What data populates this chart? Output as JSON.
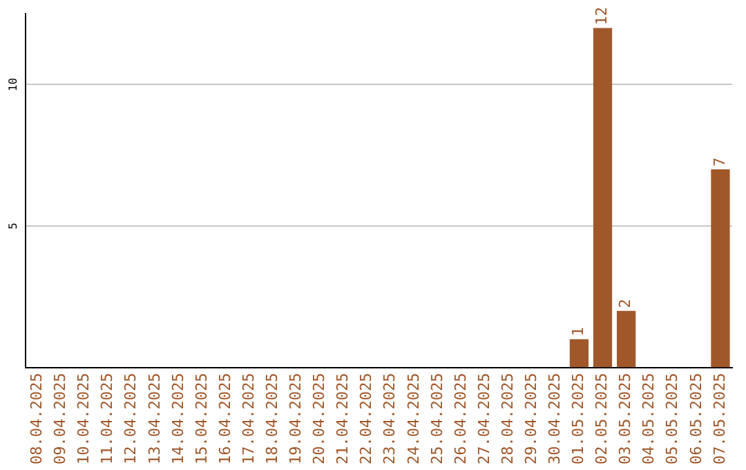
{
  "chart_data": {
    "type": "bar",
    "categories": [
      "08.04.2025",
      "09.04.2025",
      "10.04.2025",
      "11.04.2025",
      "12.04.2025",
      "13.04.2025",
      "14.04.2025",
      "15.04.2025",
      "16.04.2025",
      "17.04.2025",
      "18.04.2025",
      "19.04.2025",
      "20.04.2025",
      "21.04.2025",
      "22.04.2025",
      "23.04.2025",
      "24.04.2025",
      "25.04.2025",
      "26.04.2025",
      "27.04.2025",
      "28.04.2025",
      "29.04.2025",
      "30.04.2025",
      "01.05.2025",
      "02.05.2025",
      "03.05.2025",
      "04.05.2025",
      "05.05.2025",
      "06.05.2025",
      "07.05.2025"
    ],
    "values": [
      0,
      0,
      0,
      0,
      0,
      0,
      0,
      0,
      0,
      0,
      0,
      0,
      0,
      0,
      0,
      0,
      0,
      0,
      0,
      0,
      0,
      0,
      0,
      1,
      12,
      2,
      0,
      0,
      0,
      7
    ],
    "value_labels": [
      null,
      null,
      null,
      null,
      null,
      null,
      null,
      null,
      null,
      null,
      null,
      null,
      null,
      null,
      null,
      null,
      null,
      null,
      null,
      null,
      null,
      null,
      null,
      "1",
      "12",
      "2",
      null,
      null,
      null,
      "7"
    ],
    "color": "#a0582a",
    "ylim": [
      0,
      12.5
    ],
    "yticks": [
      5,
      10
    ],
    "grid": "y",
    "legend": false
  }
}
